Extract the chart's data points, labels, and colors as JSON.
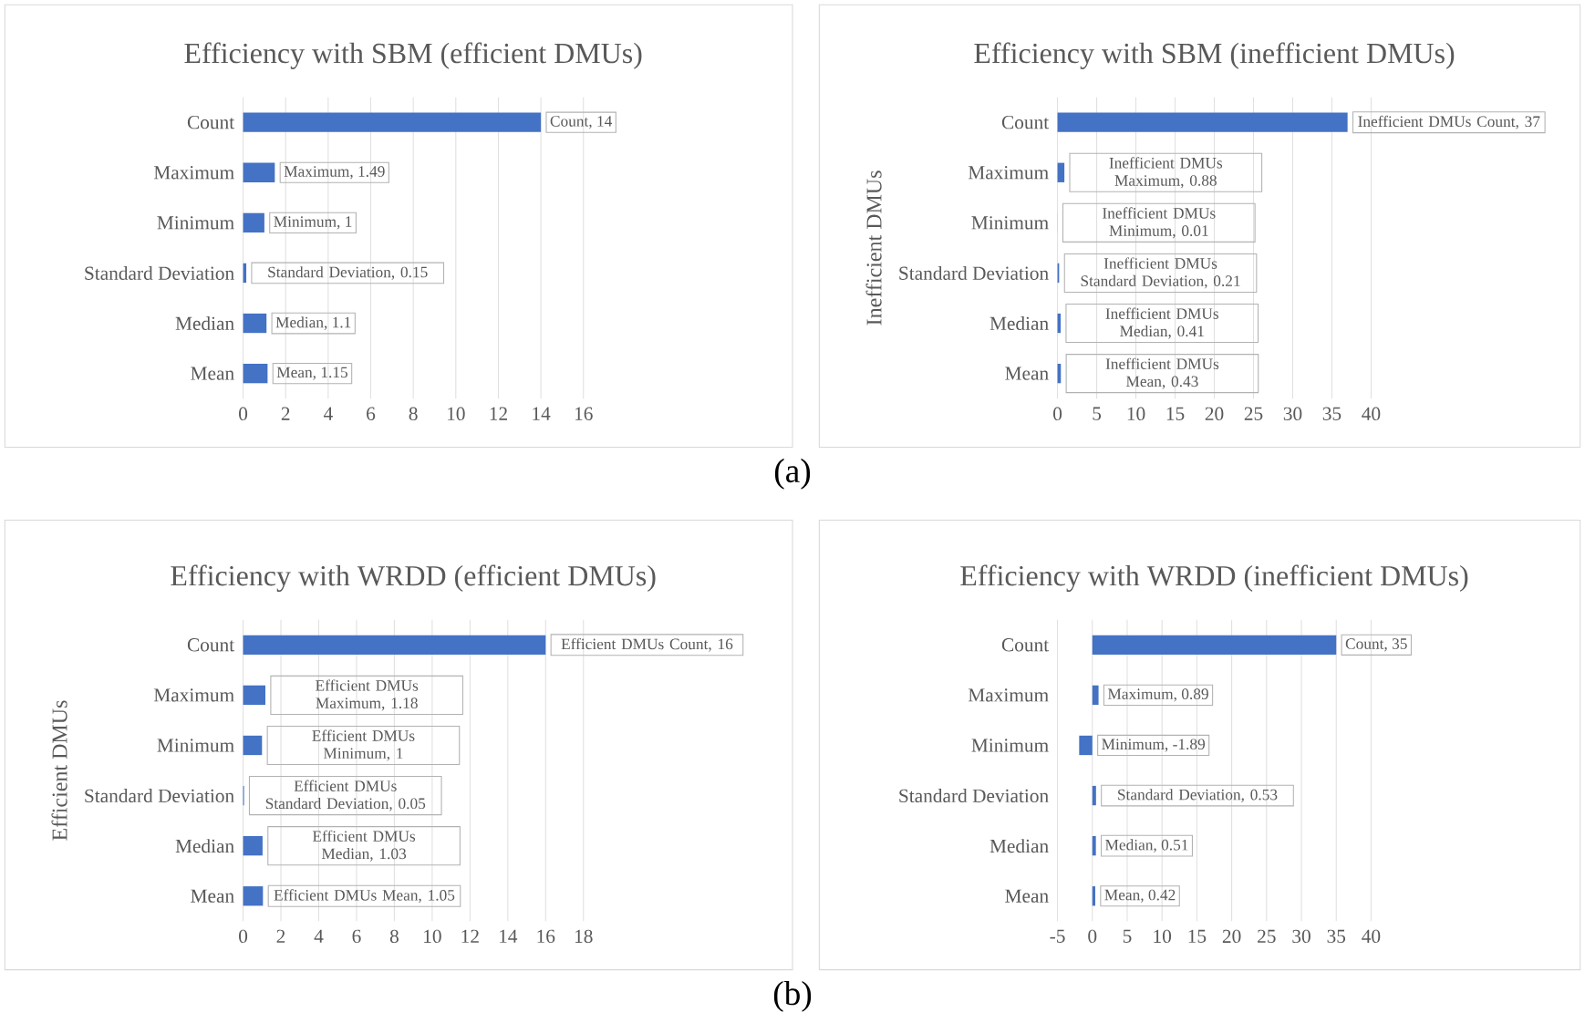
{
  "chart_data": [
    {
      "type": "bar",
      "orientation": "horizontal",
      "title": "Efficiency with SBM (efficient DMUs)",
      "categories": [
        "Count",
        "Maximum",
        "Minimum",
        "Standard Deviation",
        "Median",
        "Mean"
      ],
      "values": [
        14,
        1.49,
        1,
        0.15,
        1.1,
        1.15
      ],
      "color": "#4472c4",
      "value_labels": [
        "Count, 14",
        "Maximum, 1.49",
        "Minimum, 1",
        "Standard Deviation, 0.15",
        "Median, 1.1",
        "Mean, 1.15"
      ],
      "xlim": [
        0,
        16
      ],
      "xticks": [
        0,
        2,
        4,
        6,
        8,
        10,
        12,
        14,
        16
      ],
      "grid": "x",
      "annotations": [
        "(a)"
      ]
    },
    {
      "type": "bar",
      "orientation": "horizontal",
      "title": "Efficiency with SBM (inefficient DMUs)",
      "ylabel": "Inefficient DMUs",
      "categories": [
        "Count",
        "Maximum",
        "Minimum",
        "Standard Deviation",
        "Median",
        "Mean"
      ],
      "values": [
        37,
        0.88,
        0.01,
        0.21,
        0.41,
        0.43
      ],
      "color": "#4472c4",
      "value_labels": [
        "Inefficient DMUs Count, 37",
        "Inefficient DMUs Maximum, 0.88",
        "Inefficient DMUs Minimum, 0.01",
        "Inefficient DMUs Standard Deviation, 0.21",
        "Inefficient DMUs Median, 0.41",
        "Inefficient DMUs Mean, 0.43"
      ],
      "xlim": [
        0,
        40
      ],
      "xticks": [
        0,
        5,
        10,
        15,
        20,
        25,
        30,
        35,
        40
      ],
      "grid": "x"
    },
    {
      "type": "bar",
      "orientation": "horizontal",
      "title": "Efficiency with WRDD (efficient DMUs)",
      "ylabel": "Efficient DMUs",
      "categories": [
        "Count",
        "Maximum",
        "Minimum",
        "Standard Deviation",
        "Median",
        "Mean"
      ],
      "values": [
        16,
        1.18,
        1,
        0.05,
        1.03,
        1.05
      ],
      "color": "#4472c4",
      "value_labels": [
        "Efficient DMUs Count, 16",
        "Efficient DMUs Maximum, 1.18",
        "Efficient DMUs Minimum, 1",
        "Efficient DMUs Standard Deviation, 0.05",
        "Efficient DMUs Median, 1.03",
        "Efficient DMUs Mean, 1.05"
      ],
      "xlim": [
        0,
        18
      ],
      "xticks": [
        0,
        2,
        4,
        6,
        8,
        10,
        12,
        14,
        16,
        18
      ],
      "grid": "x",
      "annotations": [
        "(b)"
      ]
    },
    {
      "type": "bar",
      "orientation": "horizontal",
      "title": "Efficiency with WRDD (inefficient DMUs)",
      "categories": [
        "Count",
        "Maximum",
        "Minimum",
        "Standard Deviation",
        "Median",
        "Mean"
      ],
      "values": [
        35,
        0.89,
        -1.89,
        0.53,
        0.51,
        0.42
      ],
      "color": "#4472c4",
      "value_labels": [
        "Count, 35",
        "Maximum, 0.89",
        "Minimum, -1.89",
        "Standard Deviation, 0.53",
        "Median, 0.51",
        "Mean, 0.42"
      ],
      "xlim": [
        -5,
        40
      ],
      "xticks": [
        -5,
        0,
        5,
        10,
        15,
        20,
        25,
        30,
        35,
        40
      ],
      "grid": "x"
    }
  ]
}
